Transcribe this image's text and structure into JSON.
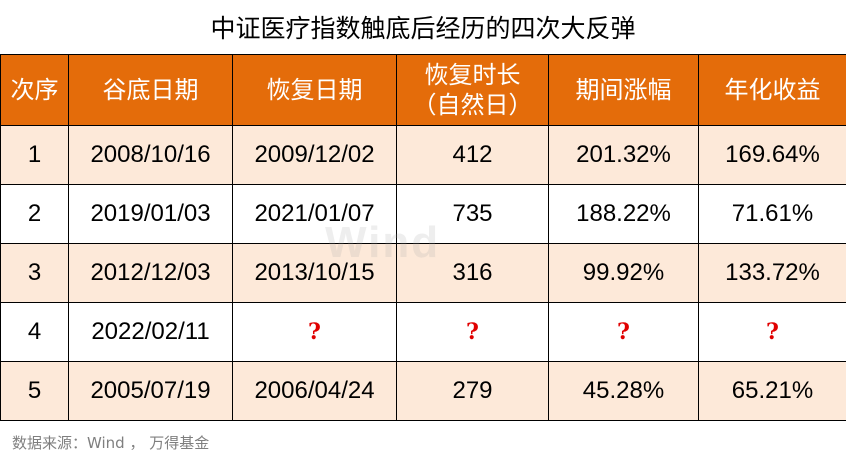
{
  "title": "中证医疗指数触底后经历的四次大反弹",
  "table": {
    "headers": [
      "次序",
      "谷底日期",
      "恢复日期",
      "恢复时长\n（自然日）",
      "期间涨幅",
      "年化收益"
    ],
    "rows": [
      [
        "1",
        "2008/10/16",
        "2009/12/02",
        "412",
        "201.32%",
        "169.64%"
      ],
      [
        "2",
        "2019/01/03",
        "2021/01/07",
        "735",
        "188.22%",
        "71.61%"
      ],
      [
        "3",
        "2012/12/03",
        "2013/10/15",
        "316",
        "99.92%",
        "133.72%"
      ],
      [
        "4",
        "2022/02/11",
        "?",
        "?",
        "?",
        "?"
      ],
      [
        "5",
        "2005/07/19",
        "2006/04/24",
        "279",
        "45.28%",
        "65.21%"
      ]
    ]
  },
  "watermark": "Wind",
  "source": "数据来源：Wind ， 万得基金",
  "colors": {
    "header_bg": "#e46c0a",
    "header_text": "#ffffff",
    "shaded_row": "#fde9d9",
    "question_mark": "#e00000"
  }
}
